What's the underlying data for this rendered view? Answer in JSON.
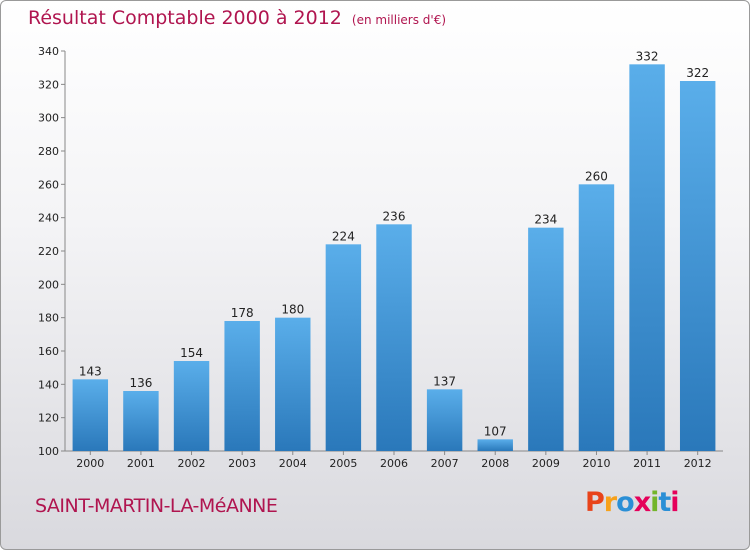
{
  "title": "Résultat Comptable 2000 à 2012",
  "subtitle": "(en milliers d'€)",
  "commune": "SAINT-MARTIN-LA-MéANNE",
  "logo_text": "Proxiti",
  "logo_colors": [
    "#e8431a",
    "#f7a11a",
    "#2a8fd6",
    "#e5005a",
    "#73b52a",
    "#2a8fd6",
    "#e5005a"
  ],
  "bar_color_top": "#5aaeea",
  "bar_color_bottom": "#2a78ba",
  "chart_data": {
    "type": "bar",
    "categories": [
      "2000",
      "2001",
      "2002",
      "2003",
      "2004",
      "2005",
      "2006",
      "2007",
      "2008",
      "2009",
      "2010",
      "2011",
      "2012"
    ],
    "values": [
      143,
      136,
      154,
      178,
      180,
      224,
      236,
      137,
      107,
      234,
      260,
      332,
      322
    ],
    "ylim": [
      100,
      340
    ],
    "yticks": [
      100,
      120,
      140,
      160,
      180,
      200,
      220,
      240,
      260,
      280,
      300,
      320,
      340
    ],
    "grid": false
  }
}
